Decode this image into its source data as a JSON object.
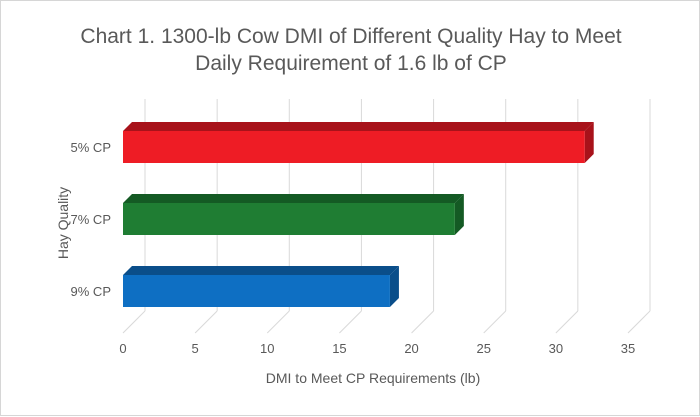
{
  "chart_data": {
    "type": "bar",
    "orientation": "horizontal",
    "title_lines": [
      "Chart 1. 1300-lb Cow DMI of Different Quality Hay to Meet",
      "Daily Requirement of 1.6 lb of CP"
    ],
    "xlabel": "DMI to Meet CP Requirements (lb)",
    "ylabel": "Hay Quality",
    "xlim": [
      0,
      35
    ],
    "xticks": [
      "0",
      "5",
      "10",
      "15",
      "20",
      "25",
      "30",
      "35"
    ],
    "grid": true,
    "legend": "none",
    "categories": [
      "5% CP",
      "7% CP",
      "9% CP"
    ],
    "values": [
      32,
      23,
      18.5
    ],
    "colors": [
      "#ee1c25",
      "#1f7d33",
      "#0e6fc3"
    ],
    "shade_colors": [
      "#a8121a",
      "#145a24",
      "#0a4e8a"
    ]
  }
}
